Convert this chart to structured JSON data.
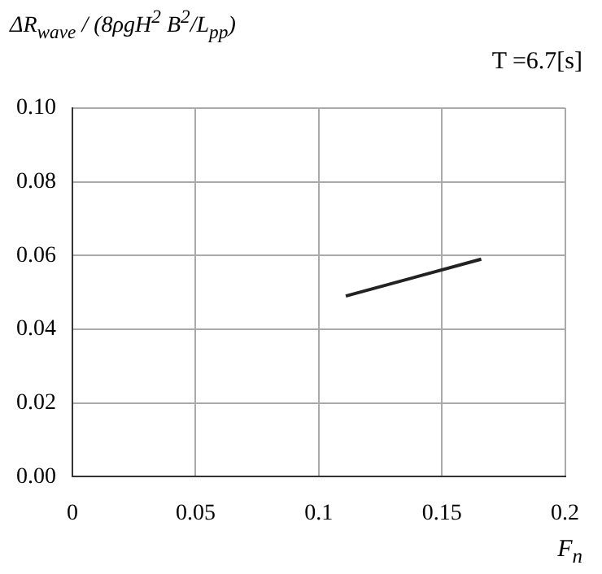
{
  "chart_data": {
    "type": "line",
    "ylabel": "ΔR$_{wave}$ / (8ρgH$^{2}$ B$^{2}$/L$_{pp}$)",
    "xlabel": "F$_{n}$",
    "annotations": [
      "T =6.7[s]"
    ],
    "series": [
      {
        "color": "#222222",
        "x": [
          0.111,
          0.166
        ],
        "values": [
          0.049,
          0.059
        ]
      }
    ],
    "xlim": [
      0,
      0.2
    ],
    "xticks": [
      0,
      {
        "value": 0.05,
        "label": "0.05"
      },
      {
        "value": 0.1,
        "label": "0.1"
      },
      {
        "value": 0.15,
        "label": "0.15"
      },
      {
        "value": 0.2,
        "label": "0.2"
      }
    ],
    "ylim": [
      0,
      0.1
    ],
    "yticks": [
      {
        "value": 0,
        "label": "0.00"
      },
      {
        "value": 0.02,
        "label": "0.02"
      },
      {
        "value": 0.04,
        "label": "0.04"
      },
      {
        "value": 0.06,
        "label": "0.06"
      },
      {
        "value": 0.08,
        "label": "0.08"
      },
      {
        "value": 0.1,
        "label": "0.10"
      }
    ],
    "grid": true,
    "marker": "none",
    "line_style": "solid"
  }
}
